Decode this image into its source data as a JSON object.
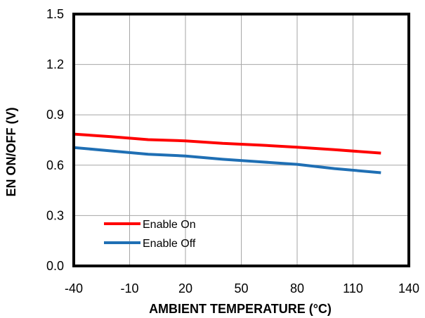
{
  "chart_data": {
    "type": "line",
    "title": "",
    "xlabel": "AMBIENT TEMPERATURE (°C)",
    "ylabel": "EN ON/OFF (V)",
    "xlim": [
      -40,
      140
    ],
    "ylim": [
      0.0,
      1.5
    ],
    "x_ticks": [
      "-40",
      "-10",
      "20",
      "50",
      "80",
      "110",
      "140"
    ],
    "y_ticks": [
      "0.0",
      "0.3",
      "0.6",
      "0.9",
      "1.2",
      "1.5"
    ],
    "grid": true,
    "legend_position": "bottom-left",
    "series": [
      {
        "name": "Enable On",
        "color": "#ff0000",
        "x": [
          -40,
          -20,
          0,
          20,
          40,
          60,
          80,
          100,
          125
        ],
        "values": [
          0.785,
          0.77,
          0.752,
          0.745,
          0.73,
          0.72,
          0.707,
          0.692,
          0.672
        ]
      },
      {
        "name": "Enable Off",
        "color": "#1f6fb4",
        "x": [
          -40,
          -20,
          0,
          20,
          40,
          60,
          80,
          100,
          125
        ],
        "values": [
          0.705,
          0.685,
          0.665,
          0.655,
          0.635,
          0.62,
          0.605,
          0.58,
          0.555
        ]
      }
    ]
  }
}
